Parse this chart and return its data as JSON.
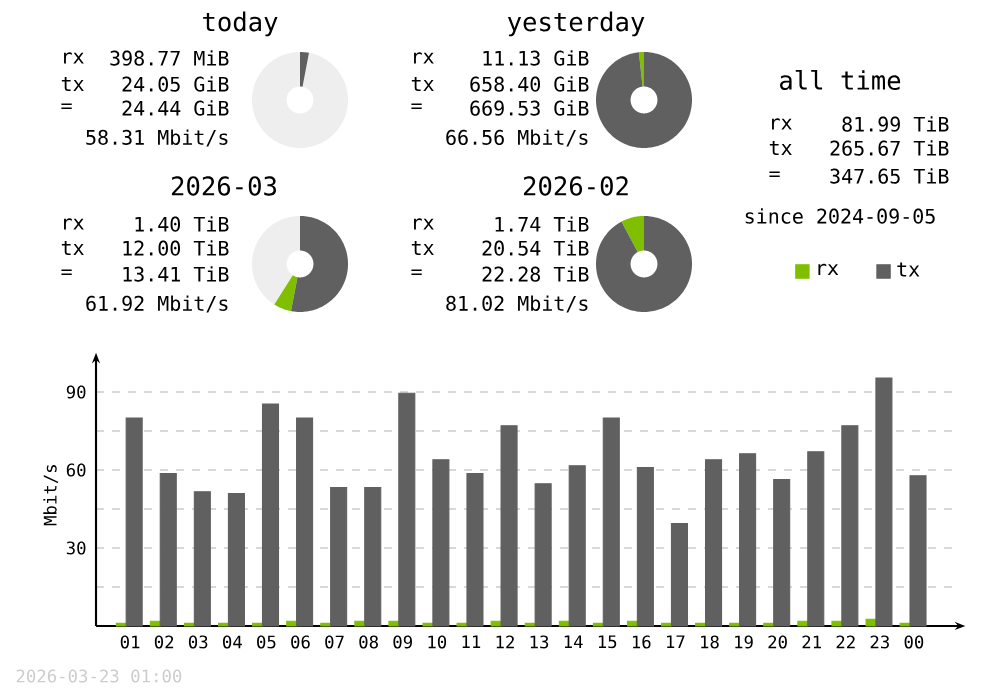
{
  "chart_data": [
    {
      "type": "donut",
      "title": "today",
      "categories": [
        null,
        null,
        null
      ],
      "values": [
        97,
        0,
        3
      ],
      "colors": [
        "#eeeeee",
        "#7fbf00",
        "#606060"
      ],
      "annotations": [
        "rx",
        "398.77 MiB",
        "tx",
        "24.05 GiB",
        "=",
        "24.44 GiB",
        "58.31 Mbit/s"
      ]
    },
    {
      "type": "donut",
      "title": "yesterday",
      "categories": [
        null,
        null
      ],
      "values": [
        1.7,
        98.3
      ],
      "colors": [
        "#7fbf00",
        "#606060"
      ],
      "annotations": [
        "rx",
        "11.13 GiB",
        "tx",
        "658.40 GiB",
        "=",
        "669.53 GiB",
        "66.56 Mbit/s"
      ]
    },
    {
      "type": "donut",
      "title": "2026-03",
      "categories": [
        null,
        null,
        null
      ],
      "values": [
        41,
        6,
        53
      ],
      "colors": [
        "#eeeeee",
        "#7fbf00",
        "#606060"
      ],
      "annotations": [
        "rx",
        "1.40 TiB",
        "tx",
        "12.00 TiB",
        "=",
        "13.41 TiB",
        "61.92 Mbit/s"
      ]
    },
    {
      "type": "donut",
      "title": "2026-02",
      "categories": [
        null,
        null
      ],
      "values": [
        7.8,
        92.2
      ],
      "colors": [
        "#7fbf00",
        "#606060"
      ],
      "annotations": [
        "rx",
        "1.74 TiB",
        "tx",
        "20.54 TiB",
        "=",
        "22.28 TiB",
        "81.02 Mbit/s"
      ]
    },
    {
      "type": "other",
      "title": "all time",
      "annotations": [
        "rx",
        "81.99 TiB",
        "tx",
        "265.67 TiB",
        "=",
        "347.65 TiB",
        "since 2024-09-05"
      ]
    },
    {
      "type": "bar",
      "ylabel": "Mbit/s",
      "categories": [
        "01",
        "02",
        "03",
        "04",
        "05",
        "06",
        "07",
        "08",
        "09",
        "10",
        "11",
        "12",
        "13",
        "14",
        "15",
        "16",
        "17",
        "18",
        "19",
        "20",
        "21",
        "22",
        "23",
        "00"
      ],
      "series": [
        {
          "name": "rx",
          "color": "#7fbf00",
          "values": [
            1,
            1.8,
            1,
            1,
            1,
            1.8,
            1,
            1.8,
            1.8,
            1,
            1,
            1.8,
            1,
            1.8,
            1,
            1.8,
            1,
            1,
            1,
            1,
            1.8,
            1.8,
            2.6,
            1
          ]
        },
        {
          "name": "tx",
          "color": "#606060",
          "values": [
            80,
            58.6,
            51.6,
            50.9,
            85.4,
            80,
            53.2,
            53.2,
            89.5,
            63.9,
            58.6,
            77,
            54.7,
            61.6,
            80,
            60.9,
            39.4,
            63.9,
            66.2,
            56.3,
            67,
            77,
            95.4,
            57.8
          ]
        }
      ],
      "ylim": [
        0,
        101
      ],
      "yticks": [
        {
          "value": 15,
          "label": null
        },
        30,
        {
          "value": 45,
          "label": null
        },
        60,
        {
          "value": 75,
          "label": null
        },
        90
      ],
      "grid": "y",
      "legend": "top right",
      "annotations": [
        "2026-03-23 01:00"
      ]
    }
  ]
}
